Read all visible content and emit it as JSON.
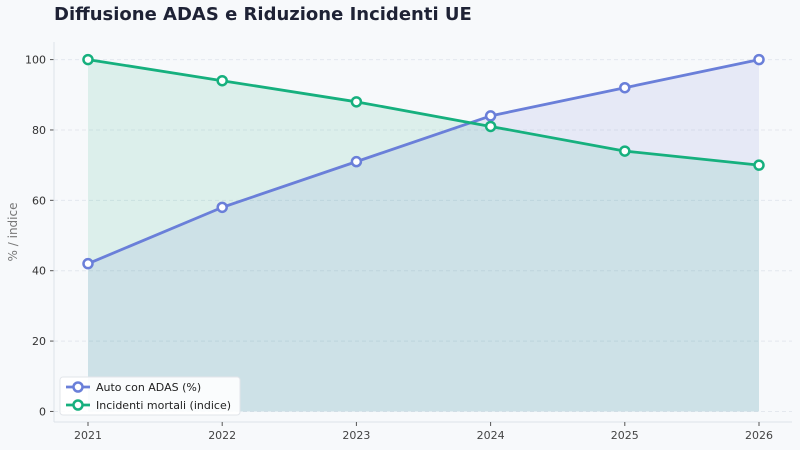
{
  "chart_data": {
    "type": "line",
    "title": "Diffusione ADAS e Riduzione Incidenti UE",
    "xlabel": "",
    "ylabel": "% / indice",
    "x": [
      "2021",
      "2022",
      "2023",
      "2024",
      "2025",
      "2026"
    ],
    "ylim": [
      -3,
      105
    ],
    "yticks": [
      0,
      20,
      40,
      60,
      80,
      100
    ],
    "grid": true,
    "legend_position": "bottom-left",
    "series": [
      {
        "name": "Auto con ADAS (%)",
        "color": "#6a7fd9",
        "fill": "#e9ecfa",
        "values": [
          42,
          58,
          71,
          84,
          92,
          100
        ]
      },
      {
        "name": "Incidenti mortali (indice)",
        "color": "#16b07e",
        "fill": "#dff3ec",
        "values": [
          100,
          94,
          88,
          81,
          74,
          70
        ]
      }
    ]
  }
}
